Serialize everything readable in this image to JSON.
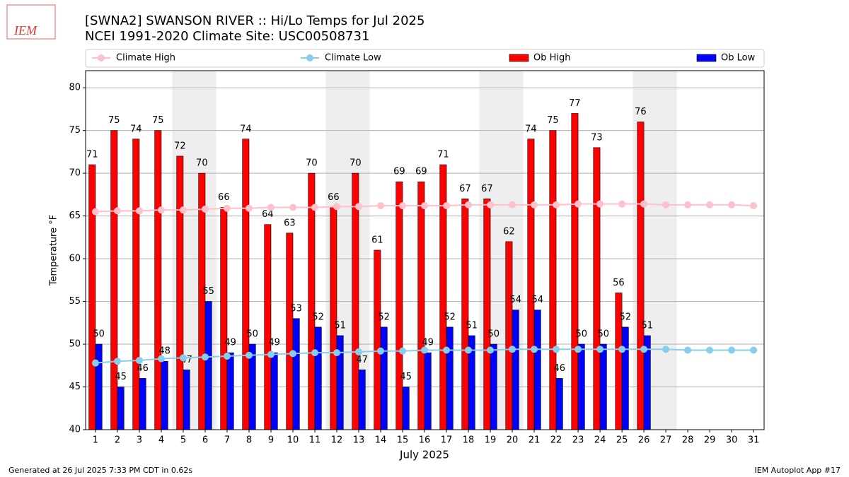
{
  "chart_data": {
    "type": "bar",
    "logo": "IEM",
    "title": "[SWNA2] SWANSON RIVER :: Hi/Lo Temps for Jul 2025",
    "subtitle": "NCEI 1991-2020 Climate Site: USC00508731",
    "x_label": "July 2025",
    "y_label": "Temperature °F",
    "footer_left": "Generated at 26 Jul 2025 7:33 PM CDT in 0.62s",
    "footer_right": "IEM Autoplot App #17",
    "x": [
      1,
      2,
      3,
      4,
      5,
      6,
      7,
      8,
      9,
      10,
      11,
      12,
      13,
      14,
      15,
      16,
      17,
      18,
      19,
      20,
      21,
      22,
      23,
      24,
      25,
      26,
      27,
      28,
      29,
      30,
      31
    ],
    "xlim": [
      0.55,
      31.48
    ],
    "xticks": [
      1,
      2,
      3,
      4,
      5,
      6,
      7,
      8,
      9,
      10,
      11,
      12,
      13,
      14,
      15,
      16,
      17,
      18,
      19,
      20,
      21,
      22,
      23,
      24,
      25,
      26,
      27,
      28,
      29,
      30,
      31
    ],
    "ylim": [
      40,
      82
    ],
    "yticks": [
      40,
      45,
      50,
      55,
      60,
      65,
      70,
      75,
      80
    ],
    "grid": true,
    "shaded_days": [
      [
        5,
        6
      ],
      [
        12,
        13
      ],
      [
        19,
        20
      ],
      [
        26,
        27
      ]
    ],
    "shade_color": "#eeeeee",
    "series": [
      {
        "name": "Climate High",
        "type": "line",
        "color": "#ffc0cb",
        "values": [
          65.5,
          65.6,
          65.6,
          65.7,
          65.7,
          65.8,
          65.9,
          65.9,
          66.0,
          66.0,
          66.0,
          66.1,
          66.1,
          66.2,
          66.2,
          66.2,
          66.2,
          66.3,
          66.3,
          66.3,
          66.3,
          66.3,
          66.4,
          66.4,
          66.4,
          66.4,
          66.3,
          66.3,
          66.3,
          66.3,
          66.2
        ]
      },
      {
        "name": "Climate Low",
        "type": "line",
        "color": "#87ceeb",
        "values": [
          47.8,
          48.0,
          48.1,
          48.3,
          48.4,
          48.5,
          48.6,
          48.7,
          48.8,
          48.9,
          49.0,
          49.0,
          49.1,
          49.2,
          49.2,
          49.3,
          49.3,
          49.3,
          49.3,
          49.4,
          49.4,
          49.4,
          49.4,
          49.4,
          49.4,
          49.4,
          49.4,
          49.3,
          49.3,
          49.3,
          49.3
        ]
      },
      {
        "name": "Ob High",
        "type": "bar",
        "color": "#ff0000",
        "values": [
          71,
          75,
          74,
          75,
          72,
          70,
          66,
          74,
          64,
          63,
          70,
          66,
          70,
          61,
          69,
          69,
          71,
          67,
          67,
          62,
          74,
          75,
          77,
          73,
          56,
          76,
          null,
          null,
          null,
          null,
          null
        ]
      },
      {
        "name": "Ob Low",
        "type": "bar",
        "color": "#0000ff",
        "values": [
          50,
          45,
          46,
          48,
          47,
          55,
          49,
          50,
          49,
          53,
          52,
          51,
          47,
          52,
          45,
          49,
          52,
          51,
          50,
          54,
          54,
          46,
          50,
          50,
          52,
          51,
          null,
          null,
          null,
          null,
          null
        ]
      }
    ]
  }
}
